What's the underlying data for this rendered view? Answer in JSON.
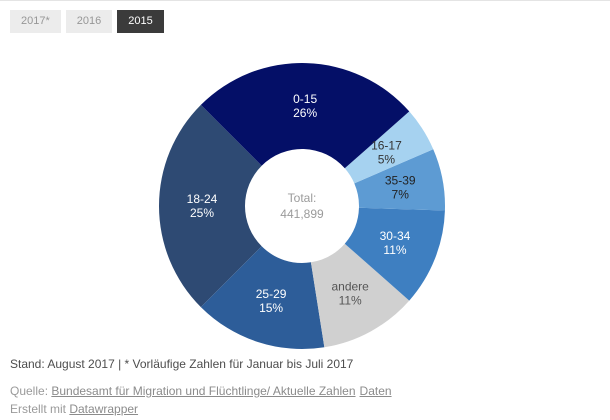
{
  "tabs": [
    {
      "label": "2017*",
      "active": false
    },
    {
      "label": "2016",
      "active": false
    },
    {
      "label": "2015",
      "active": true
    }
  ],
  "chart_data": {
    "type": "pie",
    "donut": true,
    "direction": "clockwise",
    "start_angle_deg": -45,
    "center_label": {
      "line1": "Total:",
      "line2": "441,899"
    },
    "segments": [
      {
        "label": "0-15",
        "percent": 26,
        "color": "#040f67",
        "label_color": "#ffffff"
      },
      {
        "label": "16-17",
        "percent": 5,
        "color": "#a6d2f0",
        "label_color": "#333333"
      },
      {
        "label": "35-39",
        "percent": 7,
        "color": "#5d9bd3",
        "label_color": "#222222"
      },
      {
        "label": "30-34",
        "percent": 11,
        "color": "#3e7fc1",
        "label_color": "#ffffff"
      },
      {
        "label": "andere",
        "percent": 11,
        "color": "#d0d0d0",
        "label_color": "#555555"
      },
      {
        "label": "25-29",
        "percent": 15,
        "color": "#2d5d99",
        "label_color": "#ffffff"
      },
      {
        "label": "18-24",
        "percent": 25,
        "color": "#2e4a73",
        "label_color": "#ffffff"
      }
    ]
  },
  "footer": {
    "note": "Stand: August 2017 | * Vorläufige Zahlen für Januar bis Juli 2017",
    "source_prefix": "Quelle: ",
    "source_link": "Bundesamt für Migration und Flüchtlinge/ Aktuelle Zahlen",
    "source_link2": "Daten",
    "created_prefix": "Erstellt mit ",
    "created_link": "Datawrapper"
  }
}
